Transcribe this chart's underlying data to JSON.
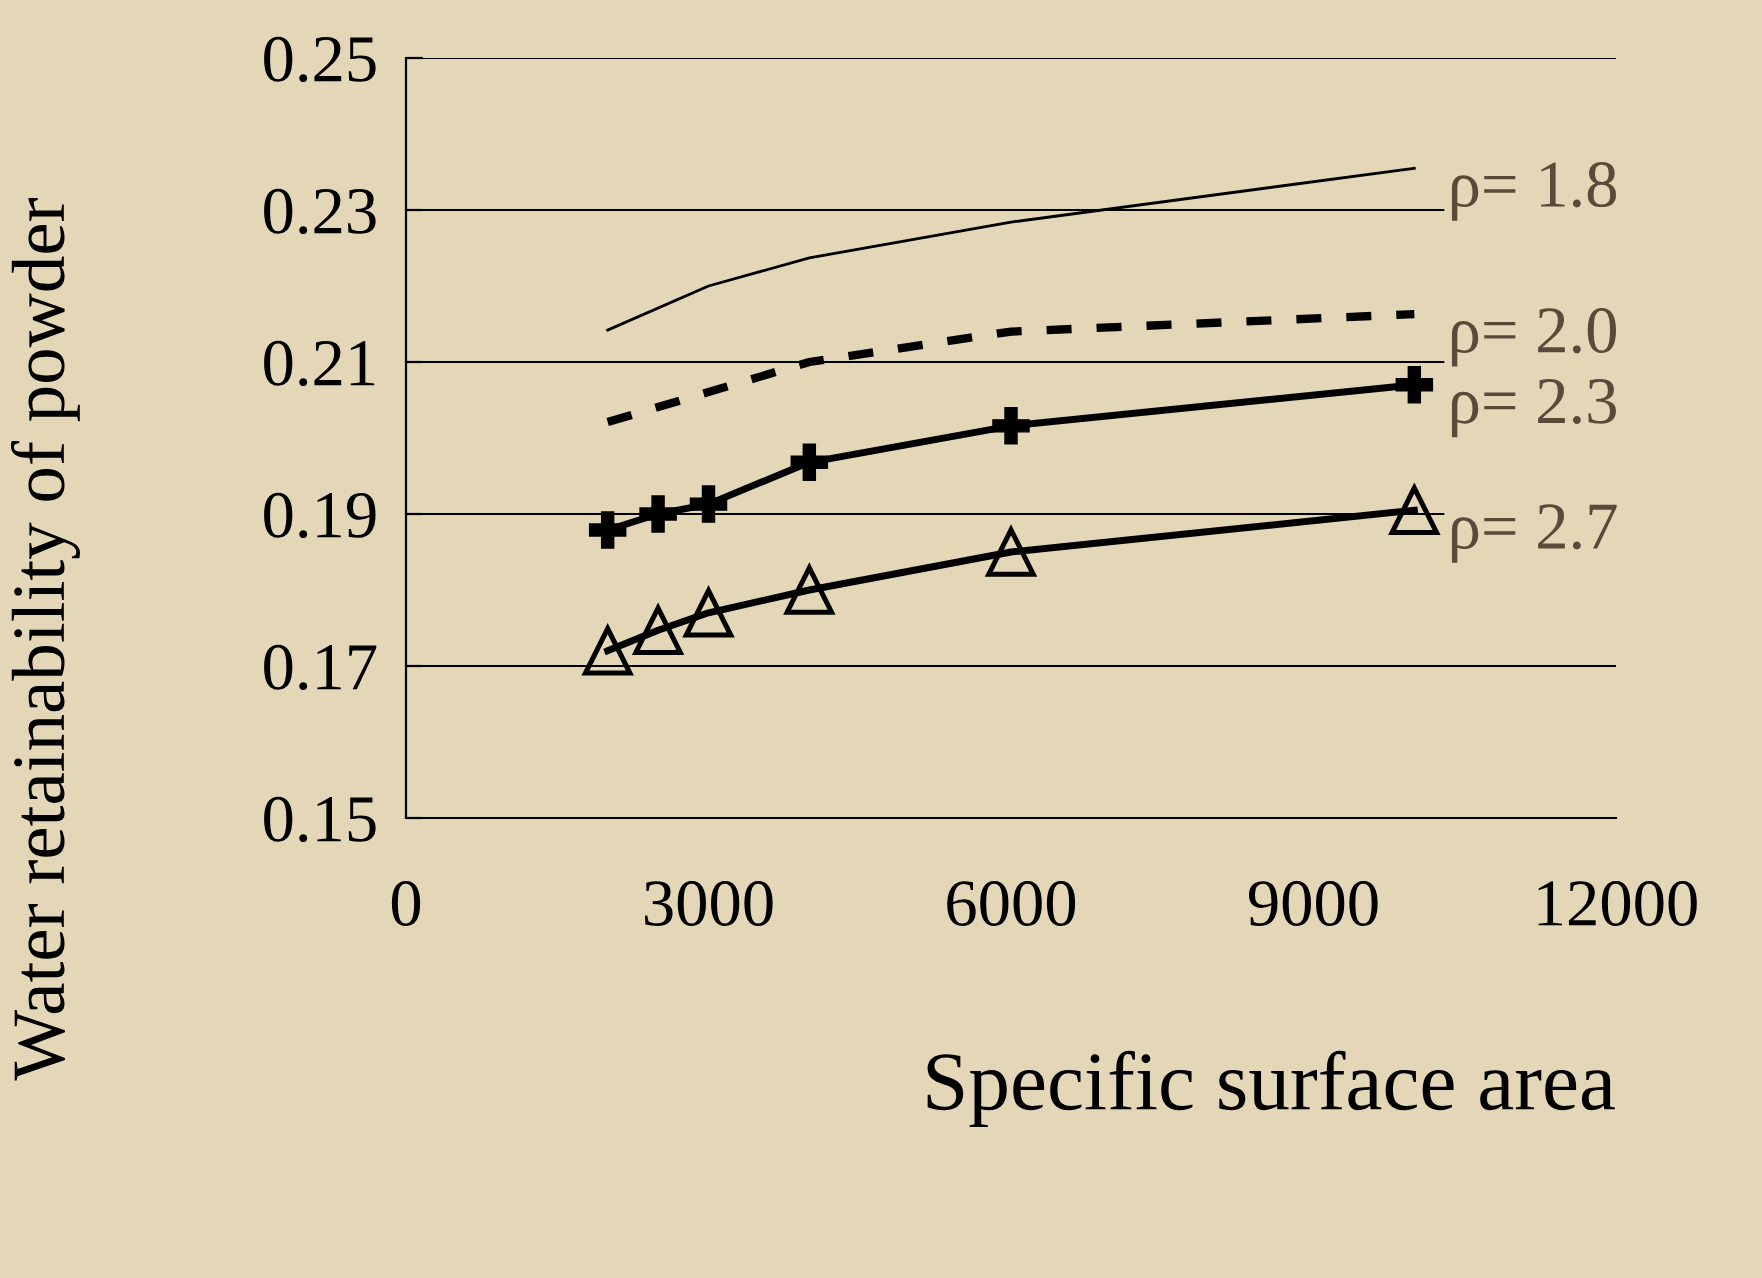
{
  "chart_data": {
    "type": "line",
    "xlabel": "Specific surface area",
    "ylabel": "Water retainability of powder",
    "xlim": [
      0,
      12000
    ],
    "xticks": [
      0,
      3000,
      6000,
      9000,
      12000
    ],
    "ylim": [
      0.15,
      0.25
    ],
    "yticks": [
      0.15,
      0.17,
      0.19,
      0.21,
      0.23,
      0.25
    ],
    "grid": "y",
    "series": [
      {
        "name": "ρ= 1.8",
        "color": "#000000",
        "line_style": "solid",
        "marker": "none",
        "x": [
          2000,
          3000,
          4000,
          6000,
          10000
        ],
        "values": [
          0.2142,
          0.22,
          0.2237,
          0.2284,
          0.2355
        ]
      },
      {
        "name": "ρ= 2.0",
        "color": "#000000",
        "line_style": "dashed",
        "marker": "none",
        "x": [
          2000,
          4000,
          6000,
          10000
        ],
        "values": [
          0.2021,
          0.21,
          0.214,
          0.2163
        ]
      },
      {
        "name": "ρ= 2.3",
        "color": "#000000",
        "line_style": "solid",
        "marker": "cross",
        "x": [
          2000,
          2500,
          3000,
          4000,
          6000,
          10000
        ],
        "values": [
          0.1879,
          0.19,
          0.1913,
          0.1968,
          0.2016,
          0.207
        ]
      },
      {
        "name": "ρ= 2.7",
        "color": "#000000",
        "line_style": "solid",
        "marker": "triangle",
        "x": [
          2000,
          2500,
          3000,
          4000,
          6000,
          10000
        ],
        "values": [
          0.172,
          0.1747,
          0.177,
          0.18,
          0.185,
          0.1905
        ]
      }
    ]
  }
}
